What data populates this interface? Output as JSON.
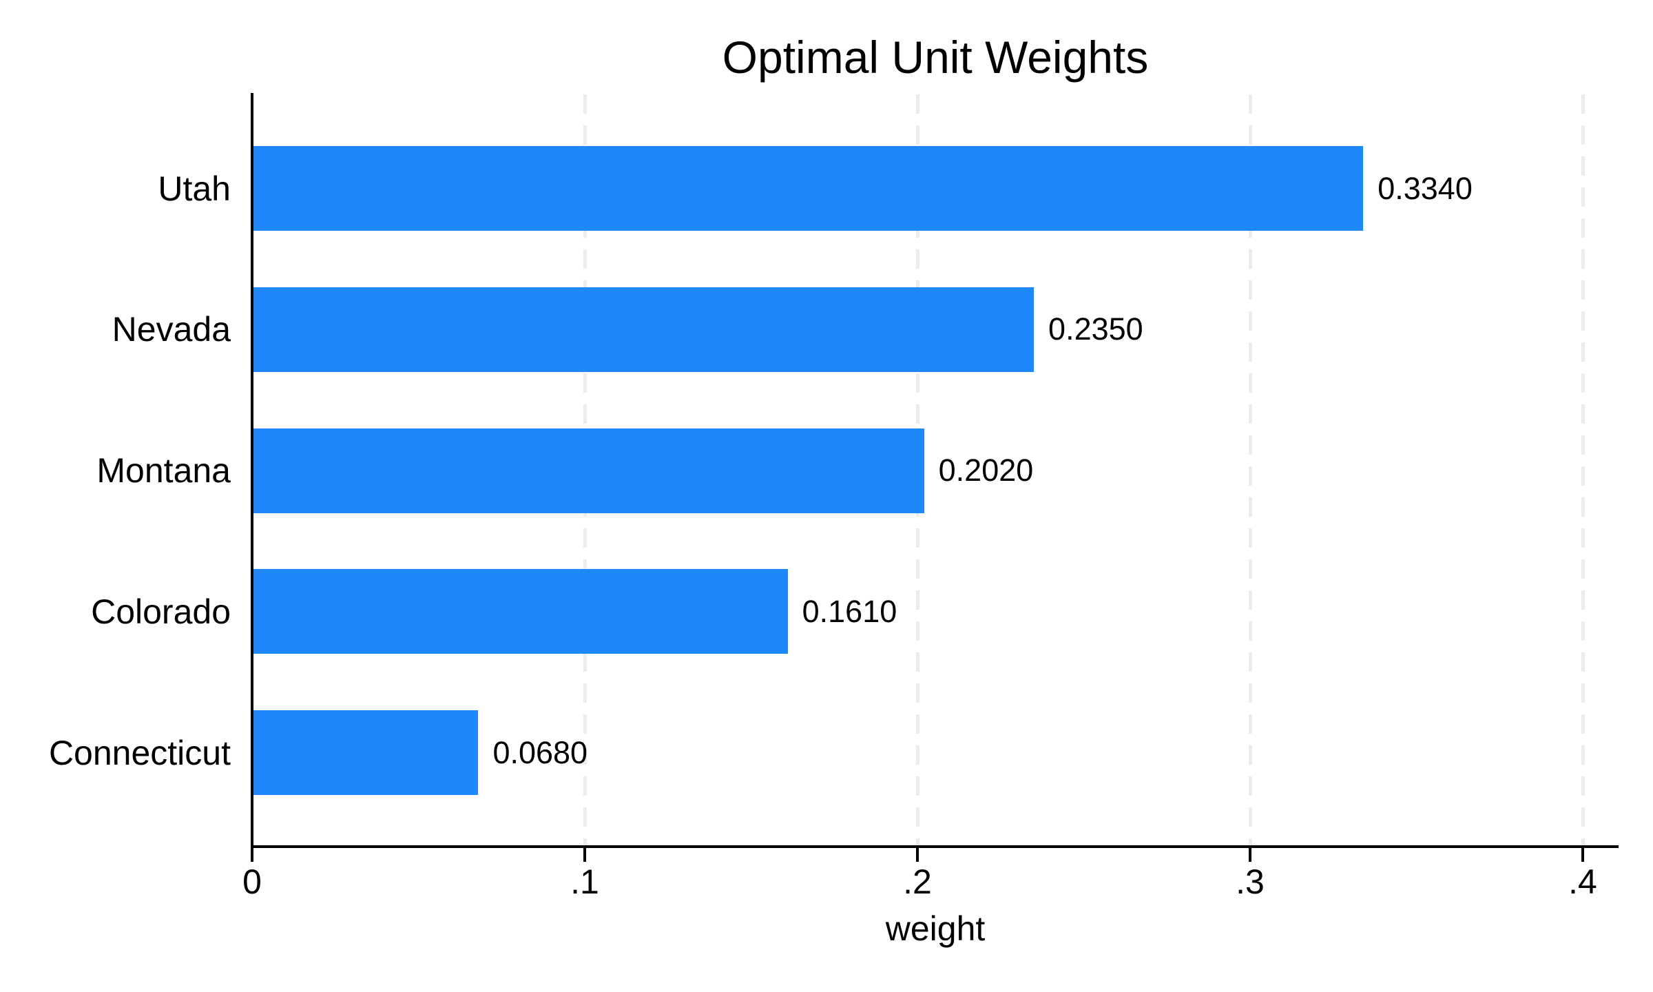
{
  "chart_data": {
    "type": "bar",
    "orientation": "horizontal",
    "title": "Optimal Unit Weights",
    "xlabel": "weight",
    "ylabel": "",
    "categories": [
      "Utah",
      "Nevada",
      "Montana",
      "Colorado",
      "Connecticut"
    ],
    "values": [
      0.334,
      0.235,
      0.202,
      0.161,
      0.068
    ],
    "value_labels": [
      "0.3340",
      "0.2350",
      "0.2020",
      "0.1610",
      "0.0680"
    ],
    "x_ticks": [
      "0",
      ".1",
      ".2",
      ".3",
      ".4"
    ],
    "x_tick_values": [
      0,
      0.1,
      0.2,
      0.3,
      0.4
    ],
    "xlim": [
      0,
      0.4
    ],
    "grid": "vertical dashed gridlines at ticks",
    "legend": "none",
    "colors": {
      "bar": "#1e87fa",
      "gridline": "#ececec",
      "axis": "#000000",
      "background": "#ffffff",
      "text": "#000000"
    }
  }
}
